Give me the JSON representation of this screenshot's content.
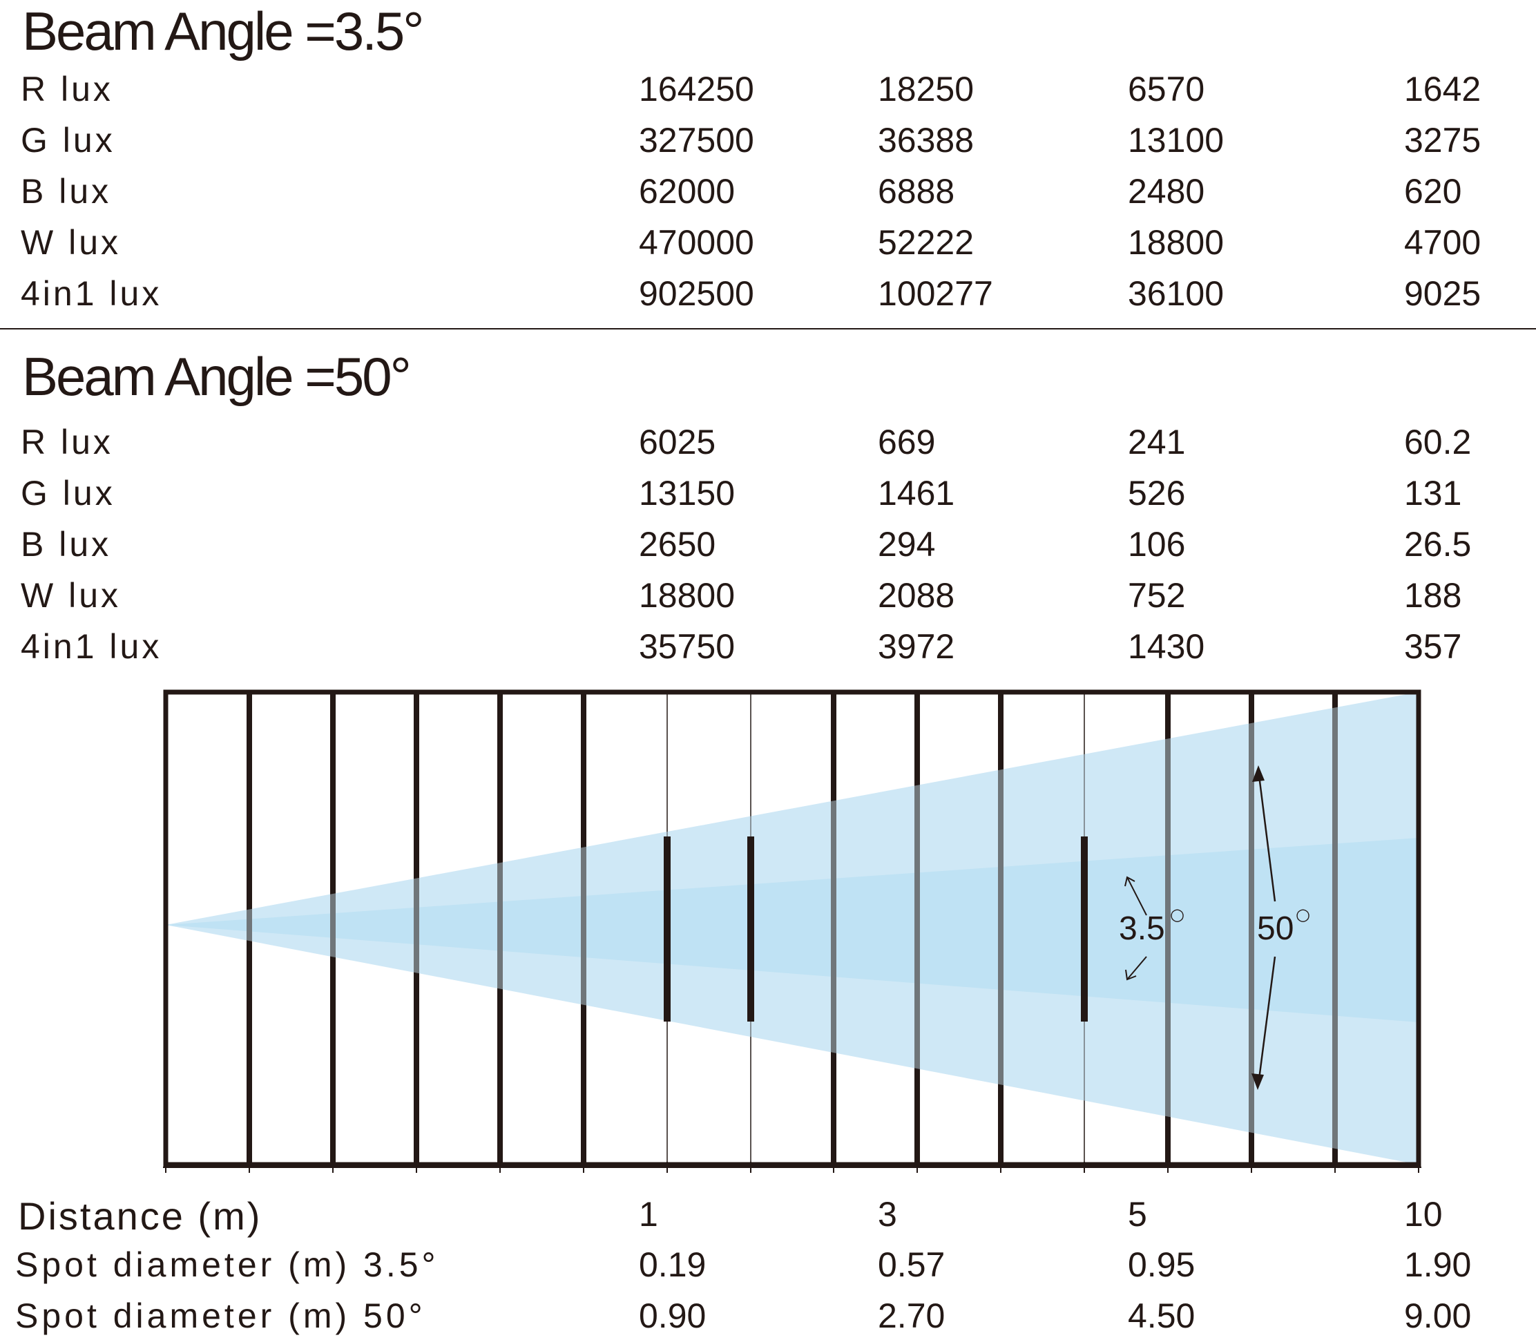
{
  "section1": {
    "title": "Beam Angle =3.5°",
    "rows": [
      {
        "label": "R lux",
        "values": [
          "164250",
          "18250",
          "6570",
          "1642"
        ]
      },
      {
        "label": "G lux",
        "values": [
          "327500",
          "36388",
          "13100",
          "3275"
        ]
      },
      {
        "label": "B lux",
        "values": [
          "62000",
          "6888",
          "2480",
          "620"
        ]
      },
      {
        "label": "W lux",
        "values": [
          "470000",
          "52222",
          "18800",
          "4700"
        ]
      },
      {
        "label": "4in1 lux",
        "values": [
          "902500",
          "100277",
          "36100",
          "9025"
        ]
      }
    ]
  },
  "section2": {
    "title": "Beam Angle =50°",
    "rows": [
      {
        "label": "R lux",
        "values": [
          "6025",
          "669",
          "241",
          "60.2"
        ]
      },
      {
        "label": "G lux",
        "values": [
          "13150",
          "1461",
          "526",
          "131"
        ]
      },
      {
        "label": "B lux",
        "values": [
          "2650",
          "294",
          "106",
          "26.5"
        ]
      },
      {
        "label": "W lux",
        "values": [
          "18800",
          "2088",
          "752",
          "188"
        ]
      },
      {
        "label": "4in1 lux",
        "values": [
          "35750",
          "3972",
          "1430",
          "357"
        ]
      }
    ]
  },
  "diagram": {
    "narrow_label": "3.5",
    "wide_label": "50",
    "degree_mark": "○",
    "colors": {
      "outer_beam": "#cfe8f6",
      "inner_beam": "#b2dcf2",
      "grid": "#231815"
    }
  },
  "footer": {
    "rows": [
      {
        "label": "Distance (m)",
        "values": [
          "1",
          "3",
          "5",
          "10"
        ]
      },
      {
        "label": "Spot diameter (m)  3.5°",
        "values": [
          "0.19",
          "0.57",
          "0.95",
          "1.90"
        ]
      },
      {
        "label": "Spot diameter (m)  50°",
        "values": [
          "0.90",
          "2.70",
          "4.50",
          "9.00"
        ]
      }
    ]
  }
}
